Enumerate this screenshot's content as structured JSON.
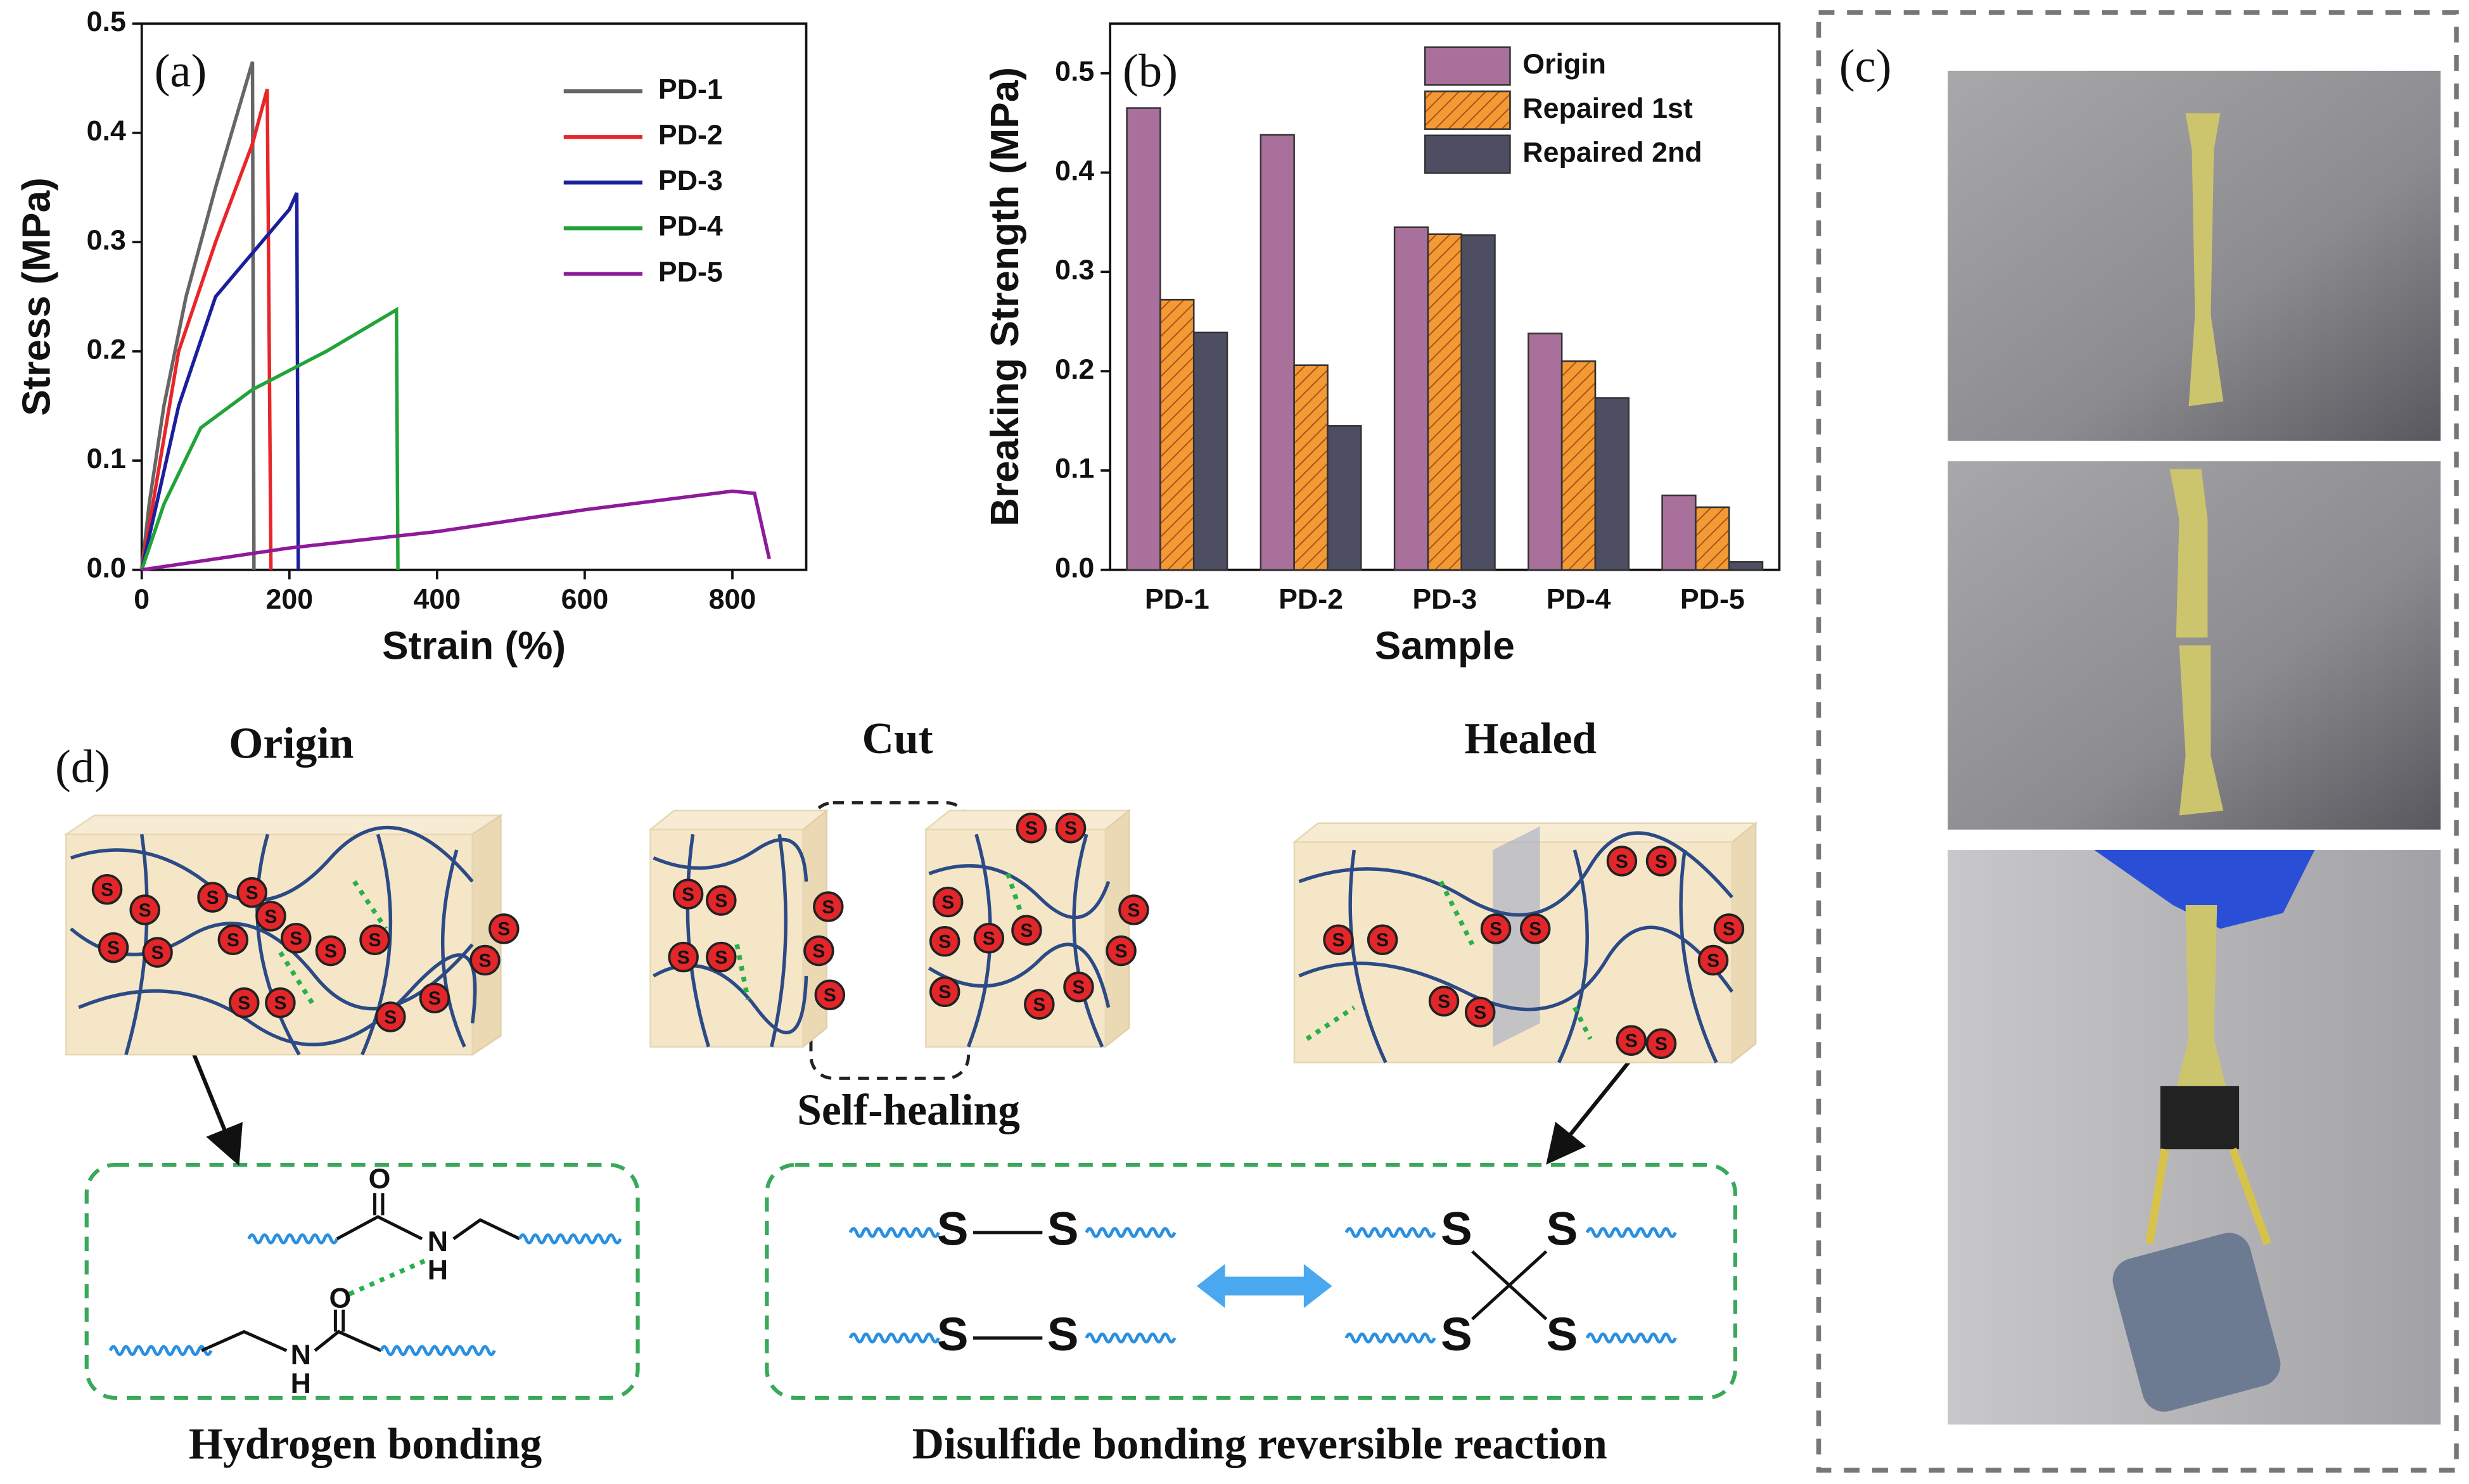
{
  "chart_data": [
    {
      "type": "line",
      "panel_label": "(a)",
      "xlabel": "Strain (%)",
      "ylabel": "Stress (MPa)",
      "xlim": [
        0,
        900
      ],
      "xticks": [
        0,
        200,
        400,
        600,
        800
      ],
      "ylim": [
        0,
        0.5
      ],
      "yticks": [
        {
          "value": 0,
          "label": "0.0"
        },
        0.1,
        0.2,
        0.3,
        0.4,
        0.5
      ],
      "legend": "upper right",
      "series": [
        {
          "name": "PD-1",
          "color": "#666666",
          "x": [
            0,
            10,
            30,
            60,
            100,
            150,
            152
          ],
          "values": [
            0,
            0.06,
            0.15,
            0.25,
            0.35,
            0.465,
            0
          ]
        },
        {
          "name": "PD-2",
          "color": "#e8262a",
          "x": [
            0,
            20,
            50,
            100,
            150,
            170,
            175
          ],
          "values": [
            0,
            0.08,
            0.2,
            0.3,
            0.39,
            0.44,
            0
          ]
        },
        {
          "name": "PD-3",
          "color": "#1a1f9c",
          "x": [
            0,
            20,
            50,
            100,
            150,
            200,
            210,
            212
          ],
          "values": [
            0,
            0.06,
            0.15,
            0.25,
            0.29,
            0.33,
            0.345,
            0
          ]
        },
        {
          "name": "PD-4",
          "color": "#22a33a",
          "x": [
            0,
            30,
            80,
            150,
            250,
            345,
            347
          ],
          "values": [
            0,
            0.06,
            0.13,
            0.165,
            0.2,
            0.238,
            0
          ]
        },
        {
          "name": "PD-5",
          "color": "#8e1a9a",
          "x": [
            0,
            200,
            400,
            600,
            800,
            830,
            850
          ],
          "values": [
            0,
            0.02,
            0.035,
            0.055,
            0.072,
            0.07,
            0.01
          ]
        }
      ]
    },
    {
      "type": "bar",
      "panel_label": "(b)",
      "xlabel": "Sample",
      "ylabel": "Breaking Strength (MPa)",
      "categories": [
        "PD-1",
        "PD-2",
        "PD-3",
        "PD-4",
        "PD-5"
      ],
      "ylim": [
        0,
        0.55
      ],
      "yticks": [
        {
          "value": 0,
          "label": "0.0"
        },
        0.1,
        0.2,
        0.3,
        0.4,
        0.5
      ],
      "legend": "upper right",
      "series": [
        {
          "name": "Origin",
          "color": "#a8709a",
          "values": [
            0.465,
            0.438,
            0.345,
            0.238,
            0.075
          ]
        },
        {
          "name": "Repaired 1st",
          "color": "#f39a35",
          "hatch": true,
          "values": [
            0.272,
            0.206,
            0.338,
            0.21,
            0.063
          ]
        },
        {
          "name": "Repaired 2nd",
          "color": "#4d4e62",
          "values": [
            0.239,
            0.145,
            0.337,
            0.173,
            0.008
          ]
        }
      ]
    }
  ],
  "panel_c": {
    "label": "(c)"
  },
  "panel_d": {
    "label": "(d)",
    "states": [
      "Origin",
      "Cut",
      "Healed"
    ],
    "process": "Self-healing",
    "mechanisms": [
      "Hydrogen bonding",
      "Disulfide bonding reversible reaction"
    ],
    "atoms": {
      "sulfur": "S",
      "oxygen": "O",
      "nitrogen": "N",
      "hydrogen": "H"
    }
  }
}
